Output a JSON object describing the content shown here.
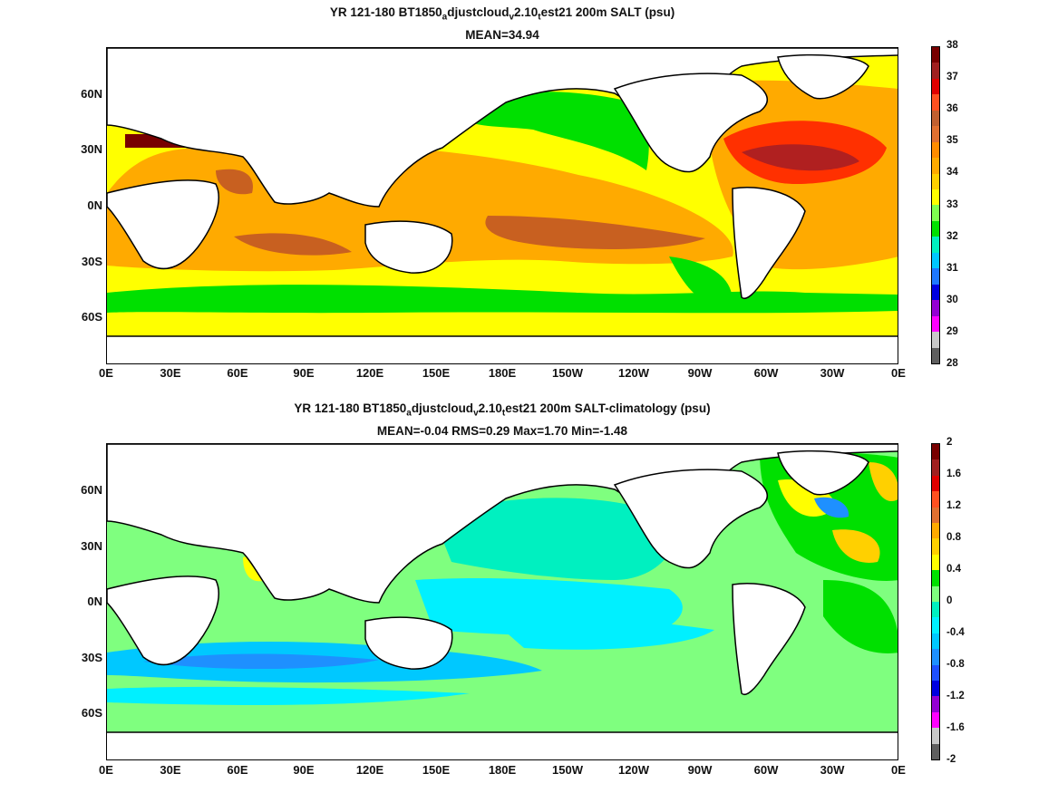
{
  "top": {
    "title": {
      "pre": "YR 121-180 BT1850",
      "s1": "a",
      "m1": "djustcloud",
      "s2": "v",
      "m2": "2.10",
      "s3": "t",
      "post": "est21 200m SALT (psu)"
    },
    "subtitle": "MEAN=34.94",
    "colorbar": {
      "labels": [
        "28",
        "29",
        "30",
        "31",
        "32",
        "33",
        "34",
        "35",
        "36",
        "37",
        "38"
      ],
      "colors": [
        "#5f5f5f",
        "#c8c8c8",
        "#ff00ff",
        "#9400d3",
        "#0000e0",
        "#1e78ff",
        "#00c8ff",
        "#00f0c0",
        "#00e000",
        "#7fff50",
        "#ffff00",
        "#ffd000",
        "#ffaa00",
        "#ff8c00",
        "#e07030",
        "#c06030",
        "#ff5020",
        "#e00000",
        "#a02020",
        "#780000"
      ]
    }
  },
  "bottom": {
    "title": {
      "pre": "YR 121-180 BT1850",
      "s1": "a",
      "m1": "djustcloud",
      "s2": "v",
      "m2": "2.10",
      "s3": "t",
      "post": "est21 200m SALT-climatology (psu)"
    },
    "subtitle": "MEAN=-0.04   RMS=0.29   Max=1.70   Min=-1.48",
    "colorbar": {
      "labels": [
        "-2",
        "-1.6",
        "-1.2",
        "-0.8",
        "-0.4",
        "0",
        "0.4",
        "0.8",
        "1.2",
        "1.6",
        "2"
      ],
      "colors": [
        "#5f5f5f",
        "#c8c8c8",
        "#ff00ff",
        "#9400d3",
        "#0000e0",
        "#1e50ff",
        "#1e90ff",
        "#00c8ff",
        "#00f0ff",
        "#00f0c0",
        "#7fff7f",
        "#00e000",
        "#ffff00",
        "#ffd000",
        "#ffaa00",
        "#e07030",
        "#ff5020",
        "#e00000",
        "#a02020",
        "#780000"
      ]
    }
  },
  "axes": {
    "xticks": [
      "0E",
      "30E",
      "60E",
      "90E",
      "120E",
      "150E",
      "180E",
      "150W",
      "120W",
      "90W",
      "60W",
      "30W",
      "0E"
    ],
    "yticks": [
      "60N",
      "30N",
      "0N",
      "30S",
      "60S"
    ]
  }
}
